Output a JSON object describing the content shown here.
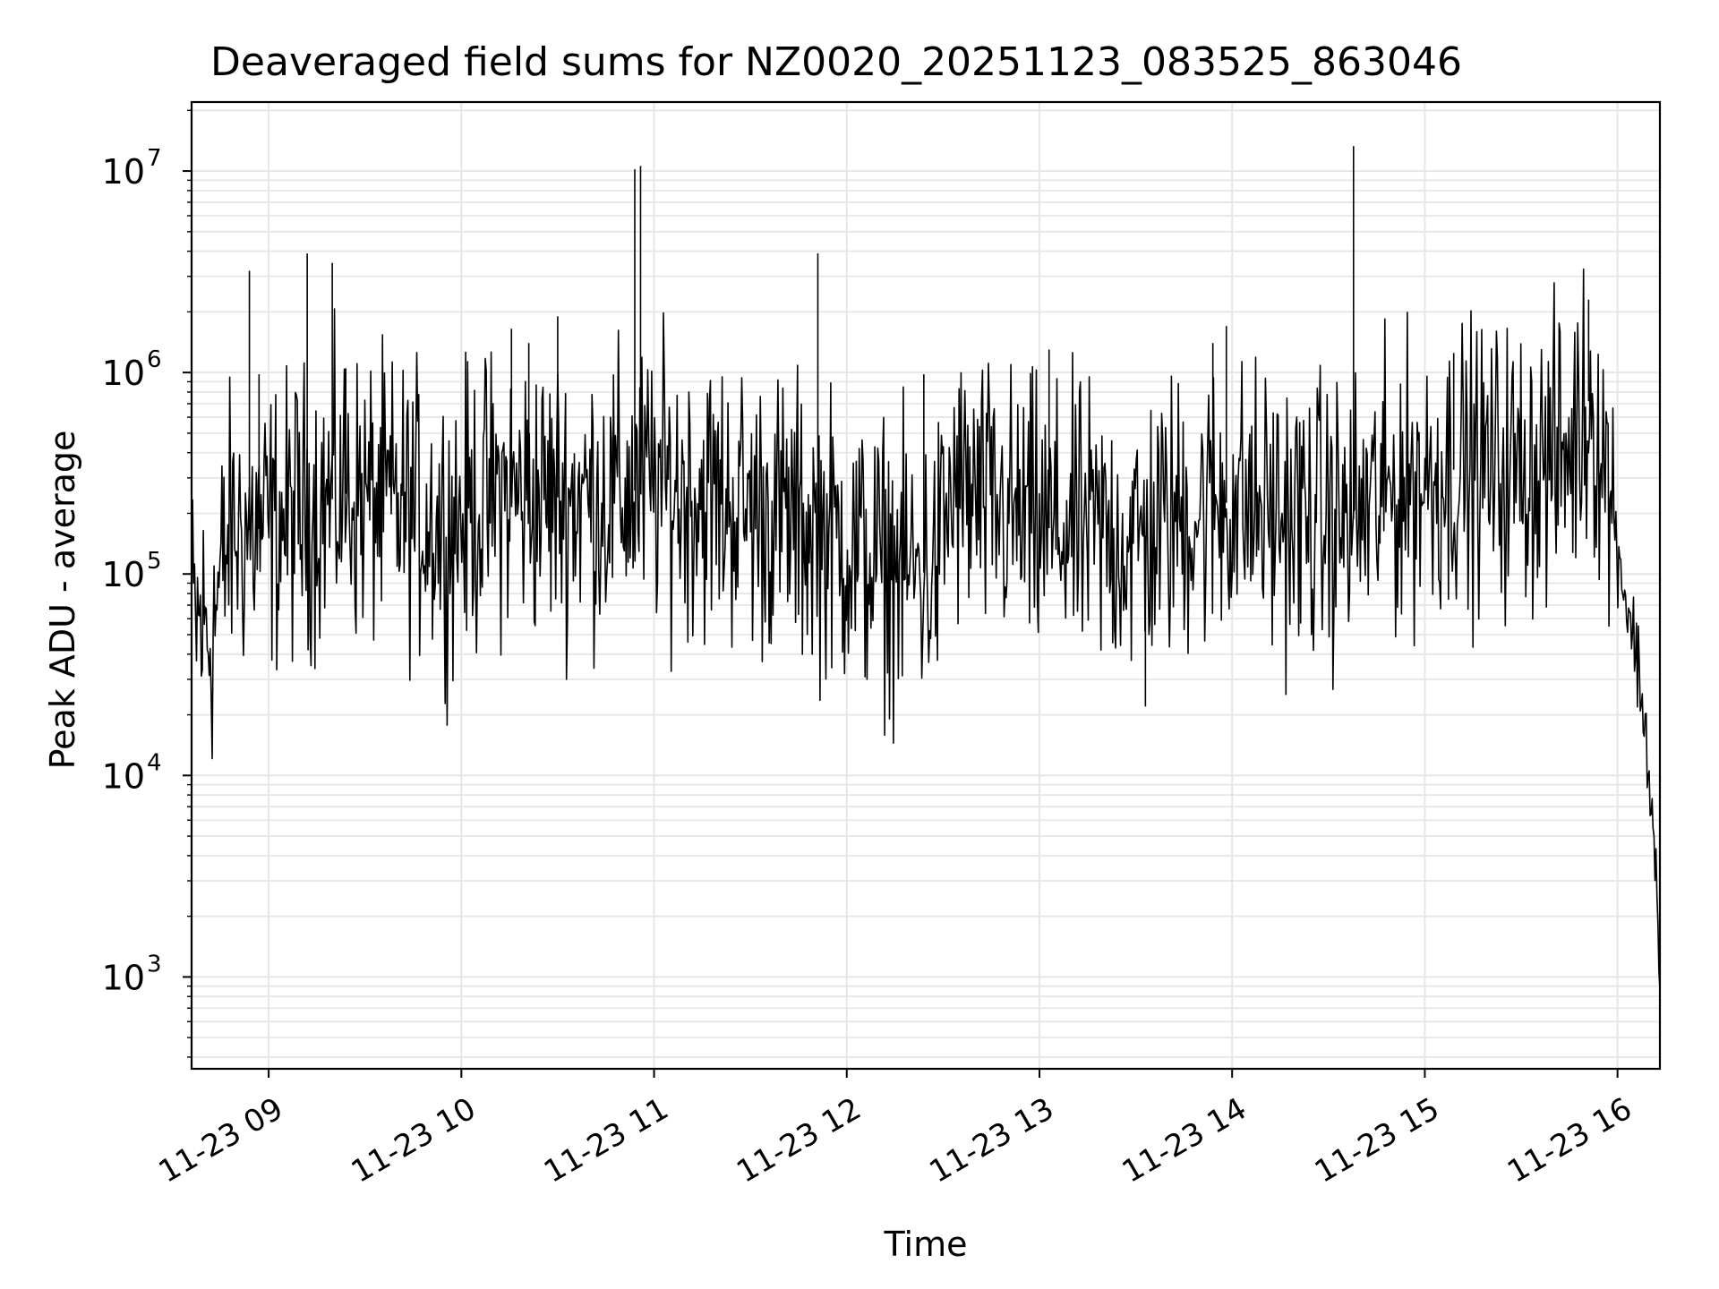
{
  "chart_data": {
    "type": "line",
    "title": "Deaveraged field sums for NZ0020_20251123_083525_863046",
    "xlabel": "Time",
    "ylabel": "Peak ADU - average",
    "yscale": "log",
    "ylim": [
      350,
      22000000
    ],
    "xlim_hours": [
      8.6,
      16.22
    ],
    "grid": true,
    "line_color": "#000000",
    "x_ticks": [
      {
        "label": "11-23 09",
        "hour": 9
      },
      {
        "label": "11-23 10",
        "hour": 10
      },
      {
        "label": "11-23 11",
        "hour": 11
      },
      {
        "label": "11-23 12",
        "hour": 12
      },
      {
        "label": "11-23 13",
        "hour": 13
      },
      {
        "label": "11-23 14",
        "hour": 14
      },
      {
        "label": "11-23 15",
        "hour": 15
      },
      {
        "label": "11-23 16",
        "hour": 16
      }
    ],
    "y_ticks": [
      {
        "base": "10",
        "exp": "3",
        "value": 1000
      },
      {
        "base": "10",
        "exp": "4",
        "value": 10000
      },
      {
        "base": "10",
        "exp": "5",
        "value": 100000
      },
      {
        "base": "10",
        "exp": "6",
        "value": 1000000
      },
      {
        "base": "10",
        "exp": "7",
        "value": 10000000
      }
    ],
    "series": [
      {
        "name": "Peak ADU - average",
        "baseline": [
          [
            8.6,
            60000
          ],
          [
            8.7,
            50000
          ],
          [
            8.8,
            160000
          ],
          [
            9.0,
            170000
          ],
          [
            9.2,
            210000
          ],
          [
            9.4,
            250000
          ],
          [
            9.6,
            220000
          ],
          [
            9.8,
            200000
          ],
          [
            9.9,
            170000
          ],
          [
            10.2,
            250000
          ],
          [
            10.5,
            240000
          ],
          [
            10.8,
            240000
          ],
          [
            11.0,
            280000
          ],
          [
            11.3,
            240000
          ],
          [
            11.6,
            200000
          ],
          [
            11.9,
            160000
          ],
          [
            12.1,
            120000
          ],
          [
            12.3,
            105000
          ],
          [
            12.45,
            100000
          ],
          [
            12.55,
            260000
          ],
          [
            12.7,
            220000
          ],
          [
            13.0,
            170000
          ],
          [
            13.2,
            165000
          ],
          [
            13.5,
            145000
          ],
          [
            13.7,
            190000
          ],
          [
            14.0,
            230000
          ],
          [
            14.3,
            190000
          ],
          [
            14.6,
            180000
          ],
          [
            14.9,
            280000
          ],
          [
            15.2,
            340000
          ],
          [
            15.5,
            330000
          ],
          [
            15.75,
            400000
          ],
          [
            15.85,
            720000
          ],
          [
            15.9,
            500000
          ],
          [
            15.95,
            300000
          ],
          [
            16.0,
            140000
          ],
          [
            16.05,
            70000
          ],
          [
            16.1,
            40000
          ],
          [
            16.15,
            15000
          ],
          [
            16.2,
            3500
          ],
          [
            16.22,
            600
          ]
        ],
        "spikes": [
          [
            8.9,
            3200000
          ],
          [
            8.95,
            980000
          ],
          [
            9.2,
            3900000
          ],
          [
            9.33,
            3500000
          ],
          [
            9.4,
            1050000
          ],
          [
            10.26,
            1650000
          ],
          [
            10.35,
            1400000
          ],
          [
            10.5,
            1900000
          ],
          [
            10.9,
            10200000
          ],
          [
            10.93,
            10600000
          ],
          [
            11.85,
            3900000
          ],
          [
            12.4,
            980000
          ],
          [
            13.05,
            1300000
          ],
          [
            13.55,
            22000
          ],
          [
            13.9,
            1400000
          ],
          [
            13.97,
            1700000
          ],
          [
            14.63,
            13300000
          ],
          [
            15.15,
            1250000
          ],
          [
            15.85,
            2300000
          ]
        ]
      }
    ]
  }
}
